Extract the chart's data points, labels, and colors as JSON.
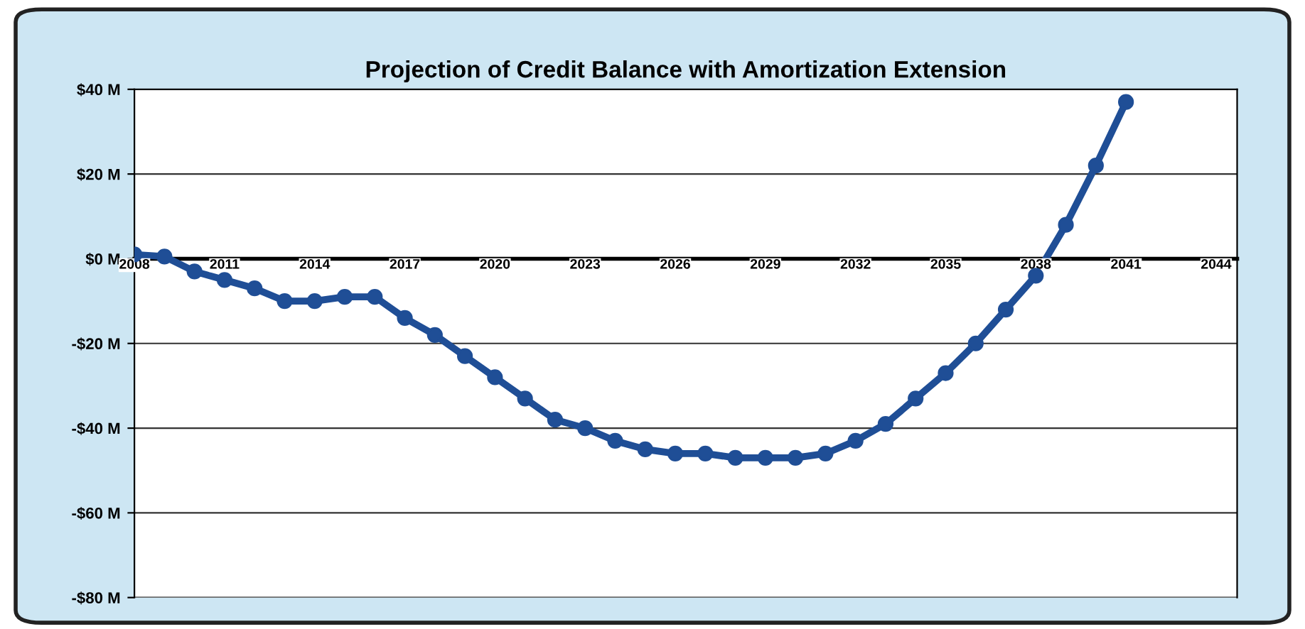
{
  "chart_data": {
    "type": "line",
    "title": "Projection of Credit Balance with Amortization Extension",
    "x": [
      2008,
      2009,
      2010,
      2011,
      2012,
      2013,
      2014,
      2015,
      2016,
      2017,
      2018,
      2019,
      2020,
      2021,
      2022,
      2023,
      2024,
      2025,
      2026,
      2027,
      2028,
      2029,
      2030,
      2031,
      2032,
      2033,
      2034,
      2035,
      2036,
      2037,
      2038,
      2039,
      2040,
      2041
    ],
    "series": [
      {
        "color": "#1f4e96",
        "values": [
          1,
          0.5,
          -3,
          -5,
          -7,
          -10,
          -10,
          -9,
          -9,
          -14,
          -18,
          -23,
          -28,
          -33,
          -38,
          -40,
          -43,
          -45,
          -46,
          -46,
          -47,
          -47,
          -47,
          -46,
          -43,
          -39,
          -33,
          -27,
          -20,
          -12,
          -4,
          8,
          22,
          37
        ]
      }
    ],
    "xlim": [
      2008,
      2044.7
    ],
    "xticks": [
      2008,
      2011,
      2014,
      2017,
      2020,
      2023,
      2026,
      2029,
      2032,
      2035,
      2038,
      2041,
      2044
    ],
    "ylim": [
      -80,
      40
    ],
    "yticks": [
      {
        "value": 40,
        "label": "$40 M"
      },
      {
        "value": 20,
        "label": "$20 M"
      },
      {
        "value": 0,
        "label": "$0 M"
      },
      {
        "value": -20,
        "label": "-$20 M"
      },
      {
        "value": -40,
        "label": "-$40 M"
      },
      {
        "value": -60,
        "label": "-$60 M"
      },
      {
        "value": -80,
        "label": "-$80 M"
      }
    ],
    "grid": "y",
    "marker": "circle",
    "line_style": "solid"
  }
}
